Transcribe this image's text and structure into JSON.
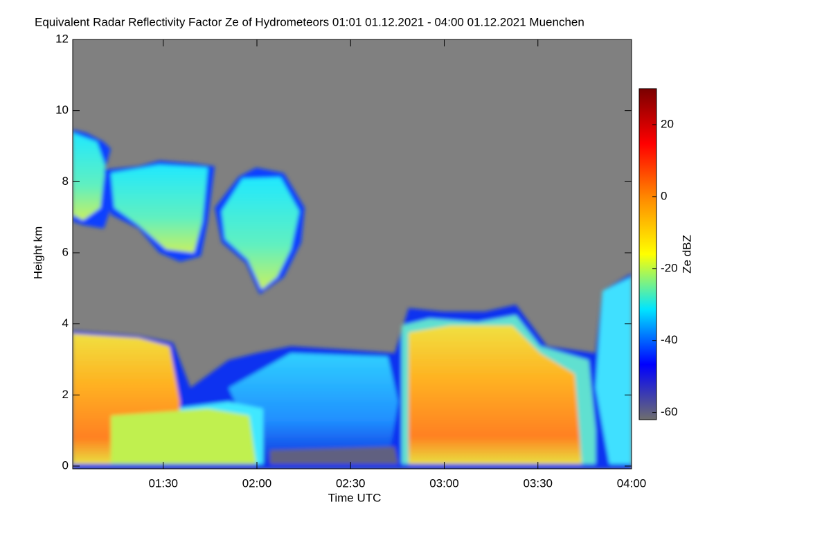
{
  "chart_data": {
    "type": "heatmap",
    "title": "Equivalent Radar Reflectivity Factor Ze of Hydrometeors   01:01 01.12.2021 - 04:00 01.12.2021 Muenchen",
    "xlabel": "Time UTC",
    "ylabel": "Height km",
    "colorbar_label": "Ze dBZ",
    "xlim": [
      61,
      240
    ],
    "xticks": [
      {
        "value": 90,
        "label": "01:30"
      },
      {
        "value": 120,
        "label": "02:00"
      },
      {
        "value": 150,
        "label": "02:30"
      },
      {
        "value": 180,
        "label": "03:00"
      },
      {
        "value": 210,
        "label": "03:30"
      },
      {
        "value": 240,
        "label": "04:00"
      }
    ],
    "ylim": [
      0,
      12
    ],
    "yticks": [
      0,
      2,
      4,
      6,
      8,
      10,
      12
    ],
    "clim": [
      -62,
      30
    ],
    "cticks": [
      -60,
      -40,
      -20,
      0,
      20
    ],
    "colormap": [
      "#6e6e6e",
      "#0000ff",
      "#00e5ff",
      "#ffff00",
      "#ff8c00",
      "#ff0000",
      "#7a0000"
    ],
    "background": "#808080"
  }
}
